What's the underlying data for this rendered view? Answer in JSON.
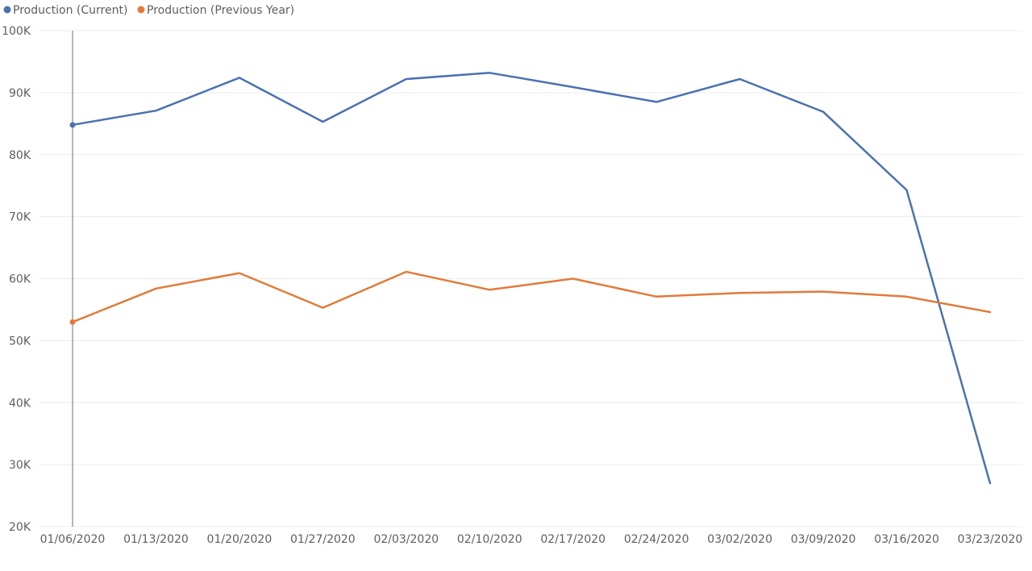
{
  "chart_data": {
    "type": "line",
    "title": "",
    "xlabel": "",
    "ylabel": "",
    "x": [
      "01/06/2020",
      "01/13/2020",
      "01/20/2020",
      "01/27/2020",
      "02/03/2020",
      "02/10/2020",
      "02/17/2020",
      "02/24/2020",
      "03/02/2020",
      "03/09/2020",
      "03/16/2020",
      "03/23/2020"
    ],
    "ylim": [
      20000,
      100000
    ],
    "yticks": [
      20000,
      30000,
      40000,
      50000,
      60000,
      70000,
      80000,
      90000,
      100000
    ],
    "ytick_labels": [
      "20K",
      "30K",
      "40K",
      "50K",
      "60K",
      "70K",
      "80K",
      "90K",
      "100K"
    ],
    "grid": true,
    "legend": "top-left",
    "series": [
      {
        "name": "Production (Current)",
        "color": "#4a72b0",
        "values": [
          84800,
          87100,
          92400,
          85300,
          92200,
          93200,
          90900,
          88500,
          92200,
          86900,
          74300,
          27000
        ]
      },
      {
        "name": "Production (Previous Year)",
        "color": "#e07b39",
        "values": [
          53000,
          58400,
          60900,
          55300,
          61100,
          58200,
          60000,
          57100,
          57700,
          57900,
          57100,
          54600
        ]
      }
    ]
  }
}
